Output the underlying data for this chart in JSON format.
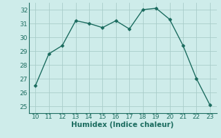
{
  "x": [
    10,
    11,
    12,
    13,
    14,
    15,
    16,
    17,
    18,
    19,
    20,
    21,
    22,
    23
  ],
  "y": [
    26.5,
    28.8,
    29.4,
    31.2,
    31.0,
    30.7,
    31.2,
    30.6,
    32.0,
    32.1,
    31.3,
    29.4,
    27.0,
    25.1
  ],
  "line_color": "#1a6b5e",
  "marker": "D",
  "marker_size": 2.5,
  "bg_color": "#ceecea",
  "grid_color": "#a8ccc9",
  "xlabel": "Humidex (Indice chaleur)",
  "xlim": [
    9.5,
    23.5
  ],
  "ylim": [
    24.5,
    32.5
  ],
  "xticks": [
    10,
    11,
    12,
    13,
    14,
    15,
    16,
    17,
    18,
    19,
    20,
    21,
    22,
    23
  ],
  "yticks": [
    25,
    26,
    27,
    28,
    29,
    30,
    31,
    32
  ],
  "xlabel_fontsize": 7.5,
  "tick_fontsize": 6.5,
  "linewidth": 1.0
}
